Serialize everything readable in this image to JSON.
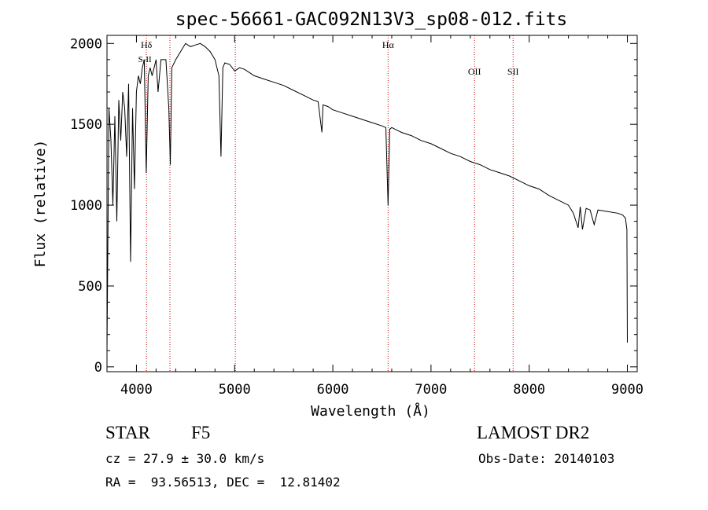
{
  "chart_data": {
    "type": "line",
    "title": "spec-56661-GAC092N13V3_sp08-012.fits",
    "xlabel": "Wavelength (Å)",
    "ylabel": "Flux (relative)",
    "xlim": [
      3700,
      9100
    ],
    "ylim": [
      -30,
      2050
    ],
    "x_ticks": [
      4000,
      5000,
      6000,
      7000,
      8000,
      9000
    ],
    "x_tick_labels": [
      "4000",
      "5000",
      "6000",
      "7000",
      "8000",
      "9000"
    ],
    "y_ticks": [
      0,
      500,
      1000,
      1500,
      2000
    ],
    "y_tick_labels": [
      "0",
      "500",
      "1000",
      "1500",
      "2000"
    ],
    "grid": false,
    "line_color": "#000000",
    "marker_color": "#cc0000",
    "line_markers": [
      {
        "label": "Hδ",
        "x": 4102
      },
      {
        "label": "",
        "x": 4341
      },
      {
        "label": "",
        "x": 5007
      },
      {
        "label": "Hα",
        "x": 6563
      },
      {
        "label": "OII",
        "x": 7443
      },
      {
        "label": "SII",
        "x": 7836
      }
    ],
    "overlap_label": "S-II",
    "series": [
      {
        "x": [
          3700,
          3720,
          3740,
          3760,
          3780,
          3800,
          3820,
          3840,
          3860,
          3880,
          3900,
          3920,
          3940,
          3960,
          3980,
          4000,
          4020,
          4040,
          4060,
          4080,
          4100,
          4120,
          4140,
          4160,
          4180,
          4200,
          4220,
          4250,
          4300,
          4330,
          4345,
          4360,
          4400,
          4450,
          4500,
          4550,
          4600,
          4650,
          4700,
          4750,
          4800,
          4840,
          4861,
          4880,
          4900,
          4950,
          5000,
          5050,
          5100,
          5150,
          5200,
          5250,
          5300,
          5400,
          5500,
          5600,
          5700,
          5800,
          5850,
          5889,
          5900,
          5950,
          6000,
          6100,
          6200,
          6300,
          6400,
          6500,
          6540,
          6563,
          6580,
          6600,
          6700,
          6800,
          6900,
          7000,
          7100,
          7200,
          7300,
          7400,
          7500,
          7600,
          7700,
          7800,
          7900,
          8000,
          8100,
          8200,
          8300,
          8400,
          8450,
          8498,
          8520,
          8542,
          8580,
          8620,
          8662,
          8700,
          8800,
          8900,
          8950,
          8980,
          8995,
          9000
        ],
        "y": [
          100,
          1600,
          1400,
          1000,
          1550,
          900,
          1650,
          1400,
          1700,
          1600,
          1300,
          1750,
          650,
          1600,
          1100,
          1700,
          1800,
          1750,
          1850,
          1900,
          1200,
          1800,
          1850,
          1800,
          1850,
          1900,
          1700,
          1900,
          1900,
          1600,
          1250,
          1850,
          1900,
          1950,
          2000,
          1980,
          1990,
          2000,
          1980,
          1950,
          1900,
          1800,
          1300,
          1850,
          1880,
          1870,
          1830,
          1850,
          1840,
          1820,
          1800,
          1790,
          1780,
          1760,
          1740,
          1710,
          1680,
          1650,
          1640,
          1450,
          1620,
          1610,
          1590,
          1570,
          1550,
          1530,
          1510,
          1490,
          1480,
          1000,
          1470,
          1480,
          1450,
          1430,
          1400,
          1380,
          1350,
          1320,
          1300,
          1270,
          1250,
          1220,
          1200,
          1180,
          1150,
          1120,
          1100,
          1060,
          1030,
          1000,
          950,
          860,
          990,
          850,
          980,
          970,
          880,
          970,
          960,
          950,
          940,
          920,
          850,
          150
        ]
      }
    ]
  },
  "info": {
    "object_class": "STAR",
    "subclass": "F5",
    "survey": "LAMOST DR2",
    "cz": "cz = 27.9 ± 30.0 km/s",
    "obs_date": "Obs-Date: 20140103",
    "coords": "RA =  93.56513, DEC =  12.81402"
  }
}
